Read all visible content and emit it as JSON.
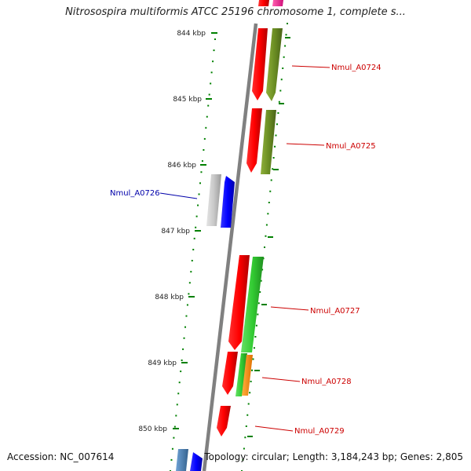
{
  "title": "Nitrosospira multiformis ATCC 25196 chromosome 1, complete s...",
  "footer": {
    "accession": "Accession: NC_007614",
    "topology": "Topology: circular; Length: 3,184,243 bp; Genes: 2,805"
  },
  "ruler": {
    "ticks": [
      "844 kbp",
      "845 kbp",
      "846 kbp",
      "847 kbp",
      "848 kbp",
      "849 kbp",
      "850 kbp"
    ]
  },
  "genes": [
    {
      "name": "Nmul_A0724",
      "color": "#cc0000"
    },
    {
      "name": "Nmul_A0725",
      "color": "#cc0000"
    },
    {
      "name": "Nmul_A0726",
      "color": "#0000aa"
    },
    {
      "name": "Nmul_A0727",
      "color": "#cc0000"
    },
    {
      "name": "Nmul_A0728",
      "color": "#cc0000"
    },
    {
      "name": "Nmul_A0729",
      "color": "#cc0000"
    }
  ],
  "colors": {
    "backbone": "#808080",
    "cds": "#ff0000",
    "gene_blue": "#0000ff",
    "gene_grey": "#c8c8c8",
    "olive": "#6b8e23",
    "green": "#33cc33",
    "orange": "#ff8c00",
    "pink": "#ff1493",
    "steelblue": "#4682b4",
    "tick_green": "#008000"
  }
}
